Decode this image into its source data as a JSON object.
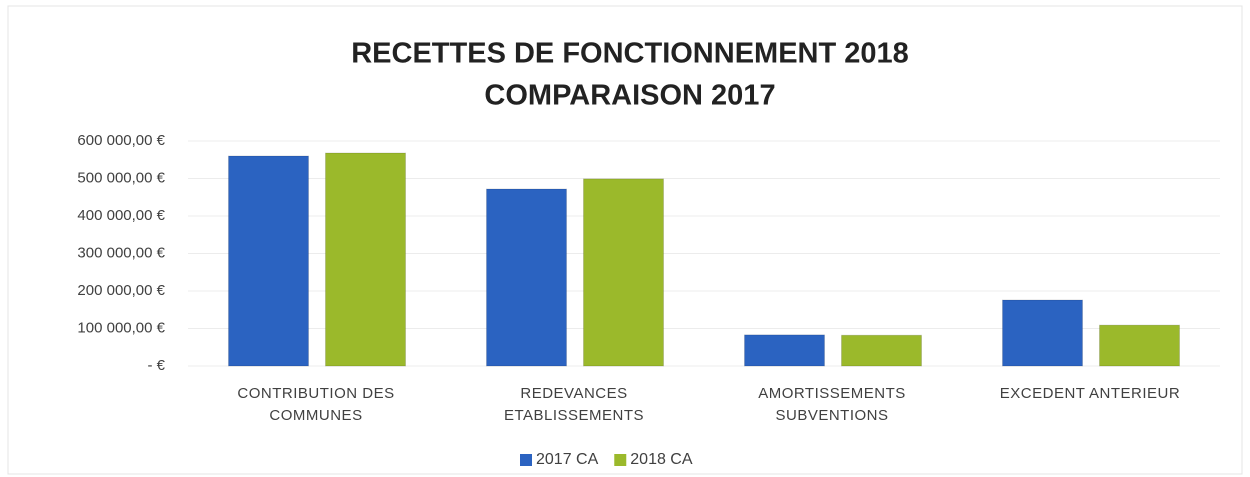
{
  "chart_data": {
    "type": "bar",
    "title": [
      "RECETTES DE FONCTIONNEMENT 2018",
      "COMPARAISON 2017"
    ],
    "categories": [
      [
        "CONTRIBUTION DES",
        "COMMUNES"
      ],
      [
        "REDEVANCES",
        "ETABLISSEMENTS"
      ],
      [
        "AMORTISSEMENTS",
        "SUBVENTIONS"
      ],
      [
        "EXCEDENT ANTERIEUR"
      ]
    ],
    "series": [
      {
        "name": "2017 CA",
        "color": "#2b63c1",
        "values": [
          560000,
          472000,
          83000,
          176000
        ]
      },
      {
        "name": "2018 CA",
        "color": "#9bb92b",
        "values": [
          568000,
          499000,
          82000,
          109000
        ]
      }
    ],
    "ylim": [
      0,
      600000
    ],
    "yticks": [
      {
        "value": 0,
        "label": "-   €"
      },
      {
        "value": 100000,
        "label": "100 000,00 €"
      },
      {
        "value": 200000,
        "label": "200 000,00 €"
      },
      {
        "value": 300000,
        "label": "300 000,00 €"
      },
      {
        "value": 400000,
        "label": "400 000,00 €"
      },
      {
        "value": 500000,
        "label": "500 000,00 €"
      },
      {
        "value": 600000,
        "label": "600 000,00 €"
      }
    ],
    "grid": true,
    "legend": "bottom"
  }
}
